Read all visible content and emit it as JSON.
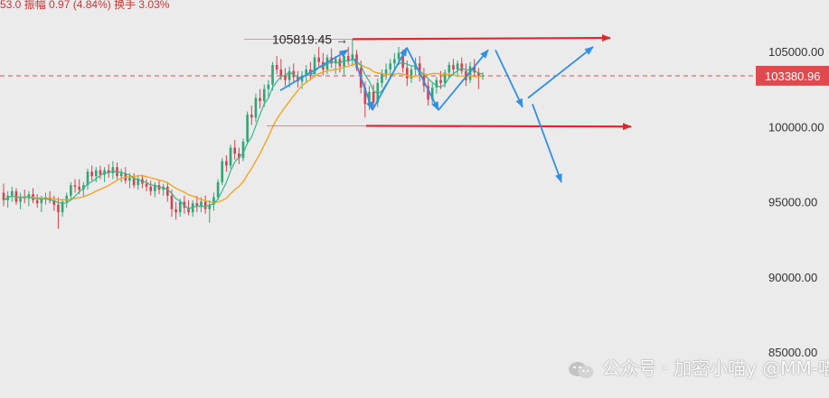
{
  "header": {
    "strip_text": "53.0  振幅 0.97 (4.84%)  换手 3.03%"
  },
  "colors": {
    "background": "#ebebeb",
    "up": "#2ea676",
    "down": "#d9404f",
    "ma_fast": "#34b78a",
    "ma_slow": "#f2a51f",
    "annotation_red": "#e0282c",
    "annotation_blue": "#2f8fe6",
    "price_tag": "#e04a4f",
    "current_line": "#e04a4f"
  },
  "watermark": {
    "text": "公众号 · 加密小喵y  @MM-喵姐",
    "icon": "wechat-icon"
  },
  "chart_data": {
    "type": "candlestick",
    "title": "",
    "xlabel": "",
    "ylabel": "",
    "ylim": [
      83700,
      108900
    ],
    "y_ticks": [
      "105000.00",
      "100000.00",
      "95000.00",
      "90000.00",
      "85000.00"
    ],
    "y_tick_values": [
      105000,
      100000,
      95000,
      90000,
      85000
    ],
    "current_price": {
      "value": 103380.96,
      "label": "103380.96"
    },
    "high_marker": {
      "value": 105819.45,
      "label": "105819.45 →"
    },
    "candles_ohlc": [
      [
        95600,
        96200,
        94700,
        95100
      ],
      [
        95100,
        95700,
        94600,
        95400
      ],
      [
        95400,
        96000,
        95000,
        95700
      ],
      [
        95700,
        95900,
        94800,
        95000
      ],
      [
        95000,
        95600,
        94500,
        95300
      ],
      [
        95300,
        95800,
        94900,
        95200
      ],
      [
        95200,
        95700,
        94700,
        95500
      ],
      [
        95500,
        95900,
        94900,
        95100
      ],
      [
        95100,
        95500,
        94600,
        94900
      ],
      [
        94900,
        95400,
        94300,
        95200
      ],
      [
        95200,
        95600,
        94800,
        95300
      ],
      [
        95300,
        95700,
        94900,
        95100
      ],
      [
        95100,
        95400,
        94400,
        94800
      ],
      [
        94800,
        95300,
        93200,
        94300
      ],
      [
        94300,
        95200,
        94000,
        95000
      ],
      [
        95000,
        95600,
        94600,
        95400
      ],
      [
        95400,
        96300,
        95100,
        96100
      ],
      [
        96100,
        96500,
        95600,
        96000
      ],
      [
        96000,
        96500,
        95500,
        95800
      ],
      [
        95800,
        96300,
        95300,
        96100
      ],
      [
        96100,
        97200,
        95800,
        97000
      ],
      [
        97000,
        97400,
        96400,
        96700
      ],
      [
        96700,
        97300,
        96300,
        97100
      ],
      [
        97100,
        97400,
        96500,
        96800
      ],
      [
        96800,
        97300,
        96300,
        97100
      ],
      [
        97100,
        97500,
        96600,
        96900
      ],
      [
        96900,
        97700,
        96500,
        97300
      ],
      [
        97300,
        97600,
        96500,
        96700
      ],
      [
        96700,
        97200,
        96300,
        96900
      ],
      [
        96900,
        97300,
        96200,
        96400
      ],
      [
        96400,
        96900,
        95900,
        96600
      ],
      [
        96600,
        96900,
        95900,
        96100
      ],
      [
        96100,
        96700,
        95800,
        96500
      ],
      [
        96500,
        96800,
        95900,
        96200
      ],
      [
        96200,
        96500,
        95700,
        96000
      ],
      [
        96000,
        96400,
        95400,
        95700
      ],
      [
        95700,
        96300,
        95300,
        96100
      ],
      [
        96100,
        96400,
        95500,
        95800
      ],
      [
        95800,
        96200,
        95400,
        96000
      ],
      [
        96000,
        96300,
        95000,
        95400
      ],
      [
        95400,
        95800,
        94000,
        94500
      ],
      [
        94500,
        95000,
        93800,
        94300
      ],
      [
        94300,
        95200,
        94000,
        95000
      ],
      [
        95000,
        95400,
        94200,
        94600
      ],
      [
        94600,
        95100,
        94100,
        94300
      ],
      [
        94300,
        95100,
        94000,
        94900
      ],
      [
        94900,
        95400,
        94300,
        94700
      ],
      [
        94700,
        95300,
        94300,
        95000
      ],
      [
        95000,
        95400,
        94200,
        94500
      ],
      [
        94500,
        95100,
        93600,
        94800
      ],
      [
        94800,
        95600,
        94400,
        95300
      ],
      [
        95300,
        96500,
        95100,
        96300
      ],
      [
        96300,
        97900,
        96100,
        97700
      ],
      [
        97700,
        98100,
        97000,
        97400
      ],
      [
        97400,
        98800,
        97200,
        98600
      ],
      [
        98600,
        99100,
        97800,
        98200
      ],
      [
        98200,
        98600,
        97500,
        97900
      ],
      [
        97900,
        99200,
        97700,
        99000
      ],
      [
        99000,
        101000,
        98800,
        100800
      ],
      [
        100800,
        101400,
        100100,
        100600
      ],
      [
        100600,
        102200,
        100300,
        101900
      ],
      [
        101900,
        102500,
        101200,
        101700
      ],
      [
        101700,
        102800,
        101300,
        102500
      ],
      [
        102500,
        103100,
        101900,
        102800
      ],
      [
        102800,
        104300,
        102400,
        104100
      ],
      [
        104100,
        104700,
        103500,
        103800
      ],
      [
        103800,
        104500,
        103100,
        103400
      ],
      [
        103400,
        103900,
        102700,
        103100
      ],
      [
        103100,
        104000,
        102600,
        103700
      ],
      [
        103700,
        104200,
        103000,
        103300
      ],
      [
        103300,
        103700,
        102600,
        103000
      ],
      [
        103000,
        103700,
        102500,
        103400
      ],
      [
        103400,
        104100,
        102900,
        103800
      ],
      [
        103800,
        104300,
        103100,
        103500
      ],
      [
        103500,
        104800,
        103300,
        104600
      ],
      [
        104600,
        105300,
        104000,
        104300
      ],
      [
        104300,
        104900,
        103400,
        103800
      ],
      [
        103800,
        104800,
        103500,
        104600
      ],
      [
        104600,
        105200,
        103900,
        104200
      ],
      [
        104200,
        104700,
        103500,
        104500
      ],
      [
        104500,
        105000,
        103600,
        104000
      ],
      [
        104000,
        104800,
        103400,
        104700
      ],
      [
        104700,
        105300,
        104100,
        104400
      ],
      [
        104400,
        105819.45,
        104000,
        104800
      ],
      [
        104800,
        105100,
        103700,
        103900
      ],
      [
        103900,
        104400,
        102200,
        102600
      ],
      [
        102600,
        103000,
        100600,
        101500
      ],
      [
        101500,
        102700,
        101100,
        102300
      ],
      [
        102300,
        102800,
        101200,
        101600
      ],
      [
        101600,
        103200,
        101300,
        102900
      ],
      [
        102900,
        103800,
        102600,
        103500
      ],
      [
        103500,
        104200,
        103100,
        103800
      ],
      [
        103800,
        104500,
        103300,
        104200
      ],
      [
        104200,
        104900,
        103700,
        104500
      ],
      [
        104500,
        105300,
        104100,
        104900
      ],
      [
        104900,
        105100,
        103600,
        103900
      ],
      [
        103900,
        104400,
        102700,
        103200
      ],
      [
        103200,
        104100,
        102900,
        103800
      ],
      [
        103800,
        104600,
        103400,
        104200
      ],
      [
        104200,
        104700,
        103000,
        103400
      ],
      [
        103400,
        103900,
        102300,
        102700
      ],
      [
        102700,
        103100,
        101400,
        101800
      ],
      [
        101800,
        102900,
        101500,
        102600
      ],
      [
        102600,
        103300,
        102200,
        103100
      ],
      [
        103100,
        103700,
        102500,
        102900
      ],
      [
        102900,
        103800,
        102600,
        103600
      ],
      [
        103600,
        104300,
        103200,
        104100
      ],
      [
        104100,
        104500,
        103400,
        103800
      ],
      [
        103800,
        104400,
        103300,
        104200
      ],
      [
        104200,
        104600,
        103500,
        103700
      ],
      [
        103700,
        104200,
        102700,
        103100
      ],
      [
        103100,
        104300,
        102900,
        104000
      ],
      [
        104000,
        104500,
        103300,
        103600
      ],
      [
        103600,
        103900,
        102500,
        103380.96
      ],
      [
        103380.96,
        103600,
        103100,
        103380.96
      ]
    ],
    "ma_fast_label": "",
    "ma_slow_label": "",
    "annotations": [
      {
        "type": "line",
        "color": "red",
        "from": [
          270,
          105819.45
        ],
        "to": [
          390,
          105819.45
        ]
      },
      {
        "type": "arrow",
        "color": "red",
        "from": [
          390,
          105819.45
        ],
        "to": [
          675,
          105900
        ]
      },
      {
        "type": "line",
        "color": "red",
        "from": [
          295,
          100050
        ],
        "to": [
          405,
          100050
        ]
      },
      {
        "type": "arrow",
        "color": "red",
        "from": [
          405,
          100050
        ],
        "to": [
          698,
          100000
        ]
      },
      {
        "type": "polyline-arrow",
        "color": "blue",
        "points": [
          [
            310,
            102400
          ],
          [
            385,
            105100
          ]
        ]
      },
      {
        "type": "polyline-arrow",
        "color": "blue",
        "points": [
          [
            392,
            104500
          ],
          [
            412,
            101100
          ]
        ]
      },
      {
        "type": "polyline-arrow",
        "color": "blue",
        "points": [
          [
            412,
            101100
          ],
          [
            450,
            105250
          ]
        ]
      },
      {
        "type": "polyline-arrow",
        "color": "blue",
        "points": [
          [
            450,
            105250
          ],
          [
            485,
            101100
          ]
        ]
      },
      {
        "type": "polyline-arrow",
        "color": "blue",
        "points": [
          [
            485,
            101100
          ],
          [
            540,
            105100
          ]
        ]
      },
      {
        "type": "polyline-arrow",
        "color": "blue",
        "points": [
          [
            548,
            105100
          ],
          [
            578,
            101300
          ]
        ]
      },
      {
        "type": "polyline-arrow",
        "color": "blue",
        "points": [
          [
            584,
            101900
          ],
          [
            656,
            105300
          ]
        ]
      },
      {
        "type": "polyline-arrow",
        "color": "blue",
        "points": [
          [
            589,
            101500
          ],
          [
            621,
            96300
          ]
        ]
      }
    ]
  }
}
